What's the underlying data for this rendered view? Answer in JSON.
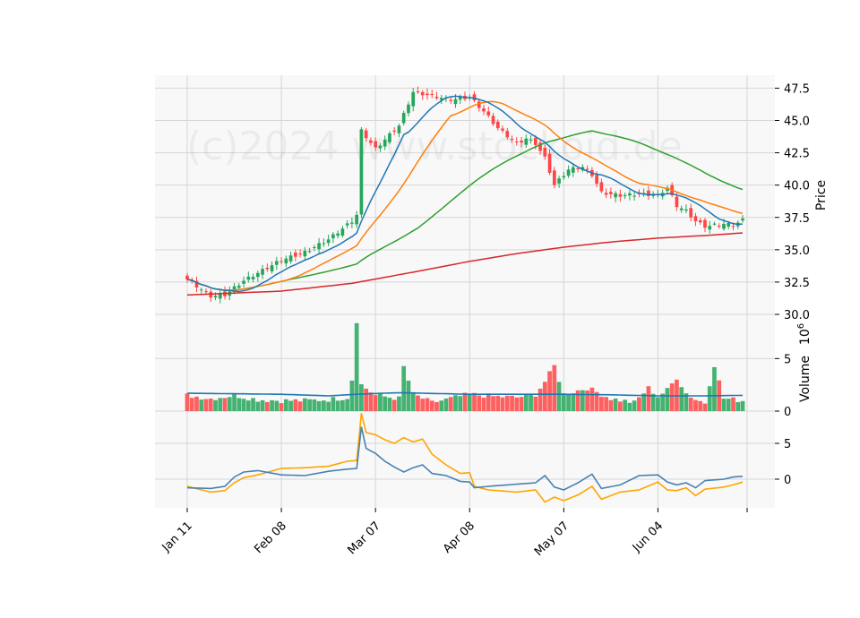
{
  "watermark": "(c)2024 www.stockoid.de",
  "colors": {
    "up": "#26a65b",
    "down": "#ff4545",
    "sma_short": "#1f77b4",
    "sma_mid": "#ff7f0e",
    "sma_long": "#2ca02c",
    "sma_200": "#d62728",
    "osc_a": "#ffa500",
    "osc_b": "#4682b4",
    "panel_bg": "#f8f8f8",
    "grid": "#d6d6d6"
  },
  "chart_data": {
    "type": "candlestick",
    "x_tick_labels": [
      "Jan 11",
      "Feb 08",
      "Mar 07",
      "Apr 08",
      "May 07",
      "Jun 04"
    ],
    "x_tick_index": [
      0,
      20,
      40,
      60,
      80,
      100
    ],
    "n_bars": 119,
    "price_axis": {
      "label": "Price",
      "ylim": [
        30.0,
        48.5
      ],
      "ticks": [
        30.0,
        32.5,
        35.0,
        37.5,
        40.0,
        42.5,
        45.0,
        47.5
      ],
      "tick_labels": [
        "30.0",
        "32.5",
        "35.0",
        "37.5",
        "40.0",
        "42.5",
        "45.0",
        "47.5"
      ]
    },
    "volume_axis": {
      "label": "Volume",
      "exponent": "6",
      "ylim": [
        0,
        9.2
      ],
      "ticks": [
        0,
        5
      ],
      "tick_labels": [
        "0",
        "5"
      ]
    },
    "oscillator_axis": {
      "ylim": [
        -4,
        9.5
      ],
      "ticks": [
        0,
        5
      ],
      "tick_labels": [
        "0",
        "5"
      ]
    },
    "close_anchors": [
      [
        0,
        32.7
      ],
      [
        5,
        31.4
      ],
      [
        8,
        31.5
      ],
      [
        12,
        32.6
      ],
      [
        20,
        34.2
      ],
      [
        25,
        34.8
      ],
      [
        30,
        35.8
      ],
      [
        35,
        37.2
      ],
      [
        36,
        37.7
      ],
      [
        37,
        44.2
      ],
      [
        40,
        42.8
      ],
      [
        45,
        44.6
      ],
      [
        48,
        47.2
      ],
      [
        52,
        46.9
      ],
      [
        56,
        46.6
      ],
      [
        60,
        46.8
      ],
      [
        63,
        45.7
      ],
      [
        66,
        44.4
      ],
      [
        70,
        43.2
      ],
      [
        72,
        43.6
      ],
      [
        74,
        43.2
      ],
      [
        76,
        42.1
      ],
      [
        78,
        40.0
      ],
      [
        81,
        41.2
      ],
      [
        84,
        41.4
      ],
      [
        86,
        40.8
      ],
      [
        88,
        39.4
      ],
      [
        92,
        39.2
      ],
      [
        96,
        39.3
      ],
      [
        100,
        39.2
      ],
      [
        102,
        39.8
      ],
      [
        104,
        38.4
      ],
      [
        106,
        38.0
      ],
      [
        108,
        37.2
      ],
      [
        110,
        36.8
      ],
      [
        114,
        37.0
      ],
      [
        116,
        36.9
      ],
      [
        118,
        37.3
      ]
    ],
    "volume_anchors": [
      [
        0,
        1.5
      ],
      [
        5,
        1.2
      ],
      [
        10,
        1.5
      ],
      [
        15,
        1.1
      ],
      [
        20,
        1.0
      ],
      [
        25,
        1.0
      ],
      [
        30,
        1.1
      ],
      [
        34,
        1.3
      ],
      [
        35,
        3.0
      ],
      [
        36,
        8.6
      ],
      [
        37,
        2.5
      ],
      [
        40,
        1.5
      ],
      [
        45,
        1.2
      ],
      [
        46,
        4.2
      ],
      [
        48,
        1.6
      ],
      [
        52,
        0.8
      ],
      [
        56,
        1.2
      ],
      [
        60,
        1.6
      ],
      [
        65,
        1.4
      ],
      [
        70,
        1.3
      ],
      [
        74,
        1.6
      ],
      [
        76,
        2.8
      ],
      [
        78,
        4.3
      ],
      [
        80,
        1.6
      ],
      [
        85,
        2.2
      ],
      [
        90,
        1.2
      ],
      [
        95,
        0.8
      ],
      [
        98,
        2.2
      ],
      [
        100,
        1.4
      ],
      [
        102,
        2.0
      ],
      [
        104,
        3.2
      ],
      [
        106,
        1.7
      ],
      [
        108,
        1.1
      ],
      [
        110,
        0.8
      ],
      [
        112,
        4.4
      ],
      [
        114,
        1.2
      ],
      [
        116,
        1.1
      ],
      [
        118,
        1.0
      ]
    ],
    "volume_avg_anchors": [
      [
        0,
        1.7
      ],
      [
        20,
        1.6
      ],
      [
        30,
        1.45
      ],
      [
        36,
        1.6
      ],
      [
        45,
        1.75
      ],
      [
        60,
        1.6
      ],
      [
        80,
        1.6
      ],
      [
        90,
        1.55
      ],
      [
        100,
        1.45
      ],
      [
        110,
        1.45
      ],
      [
        118,
        1.5
      ]
    ],
    "sma200_anchors": [
      [
        0,
        31.5
      ],
      [
        20,
        31.8
      ],
      [
        35,
        32.4
      ],
      [
        50,
        33.4
      ],
      [
        60,
        34.1
      ],
      [
        70,
        34.7
      ],
      [
        80,
        35.2
      ],
      [
        90,
        35.6
      ],
      [
        100,
        35.9
      ],
      [
        110,
        36.1
      ],
      [
        118,
        36.3
      ]
    ],
    "oscillator_a_anchors": [
      [
        0,
        -1.0
      ],
      [
        5,
        -1.8
      ],
      [
        8,
        -1.6
      ],
      [
        10,
        -0.5
      ],
      [
        12,
        0.2
      ],
      [
        15,
        0.6
      ],
      [
        20,
        1.5
      ],
      [
        25,
        1.6
      ],
      [
        30,
        1.8
      ],
      [
        34,
        2.5
      ],
      [
        36,
        2.6
      ],
      [
        37,
        9.2
      ],
      [
        38,
        6.5
      ],
      [
        40,
        6.2
      ],
      [
        42,
        5.5
      ],
      [
        44,
        5.0
      ],
      [
        46,
        5.8
      ],
      [
        48,
        5.2
      ],
      [
        50,
        5.6
      ],
      [
        52,
        3.5
      ],
      [
        55,
        2.0
      ],
      [
        58,
        0.8
      ],
      [
        60,
        0.9
      ],
      [
        61,
        -1.0
      ],
      [
        64,
        -1.5
      ],
      [
        70,
        -1.8
      ],
      [
        74,
        -1.5
      ],
      [
        76,
        -3.2
      ],
      [
        78,
        -2.5
      ],
      [
        80,
        -3.0
      ],
      [
        83,
        -2.2
      ],
      [
        86,
        -1.0
      ],
      [
        88,
        -2.8
      ],
      [
        92,
        -1.8
      ],
      [
        96,
        -1.5
      ],
      [
        100,
        -0.4
      ],
      [
        102,
        -1.5
      ],
      [
        104,
        -1.6
      ],
      [
        106,
        -1.2
      ],
      [
        108,
        -2.3
      ],
      [
        110,
        -1.4
      ],
      [
        114,
        -1.1
      ],
      [
        116,
        -0.8
      ],
      [
        118,
        -0.4
      ]
    ],
    "oscillator_b_anchors": [
      [
        0,
        -1.2
      ],
      [
        5,
        -1.3
      ],
      [
        8,
        -1.0
      ],
      [
        10,
        0.3
      ],
      [
        12,
        1.0
      ],
      [
        15,
        1.2
      ],
      [
        20,
        0.6
      ],
      [
        25,
        0.5
      ],
      [
        30,
        1.1
      ],
      [
        34,
        1.4
      ],
      [
        36,
        1.5
      ],
      [
        37,
        7.3
      ],
      [
        38,
        4.3
      ],
      [
        40,
        3.6
      ],
      [
        42,
        2.5
      ],
      [
        44,
        1.7
      ],
      [
        46,
        1.0
      ],
      [
        48,
        1.6
      ],
      [
        50,
        2.0
      ],
      [
        52,
        0.8
      ],
      [
        55,
        0.5
      ],
      [
        58,
        -0.3
      ],
      [
        60,
        -0.4
      ],
      [
        61,
        -1.2
      ],
      [
        64,
        -1.0
      ],
      [
        70,
        -0.7
      ],
      [
        74,
        -0.5
      ],
      [
        76,
        0.5
      ],
      [
        78,
        -1.1
      ],
      [
        80,
        -1.5
      ],
      [
        83,
        -0.5
      ],
      [
        86,
        0.7
      ],
      [
        88,
        -1.3
      ],
      [
        92,
        -0.8
      ],
      [
        96,
        0.5
      ],
      [
        100,
        0.6
      ],
      [
        102,
        -0.4
      ],
      [
        104,
        -0.8
      ],
      [
        106,
        -0.5
      ],
      [
        108,
        -1.2
      ],
      [
        110,
        -0.2
      ],
      [
        114,
        0.0
      ],
      [
        116,
        0.3
      ],
      [
        118,
        0.4
      ]
    ],
    "sma_windows": [
      10,
      20,
      50
    ]
  }
}
